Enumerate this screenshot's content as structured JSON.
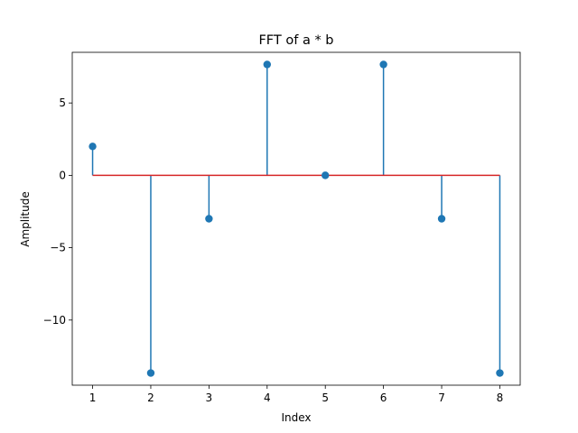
{
  "chart_data": {
    "type": "stem",
    "title": "FFT of a * b",
    "xlabel": "Index",
    "ylabel": "Amplitude",
    "x": [
      1,
      2,
      3,
      4,
      5,
      6,
      7,
      8
    ],
    "values": [
      2.0,
      -13.66,
      -3.0,
      7.66,
      0.0,
      7.66,
      -3.0,
      -13.66
    ],
    "xlim": [
      0.65,
      8.35
    ],
    "ylim": [
      -14.5,
      8.5
    ],
    "xticks": [
      1,
      2,
      3,
      4,
      5,
      6,
      7,
      8
    ],
    "xtick_labels": [
      "1",
      "2",
      "3",
      "4",
      "5",
      "6",
      "7",
      "8"
    ],
    "yticks": [
      5,
      0,
      -5,
      -10
    ],
    "ytick_labels": [
      "5",
      "0",
      "−5",
      "−10"
    ],
    "grid": false,
    "stem_color": "#1f77b4",
    "baseline_color": "#d62728"
  }
}
